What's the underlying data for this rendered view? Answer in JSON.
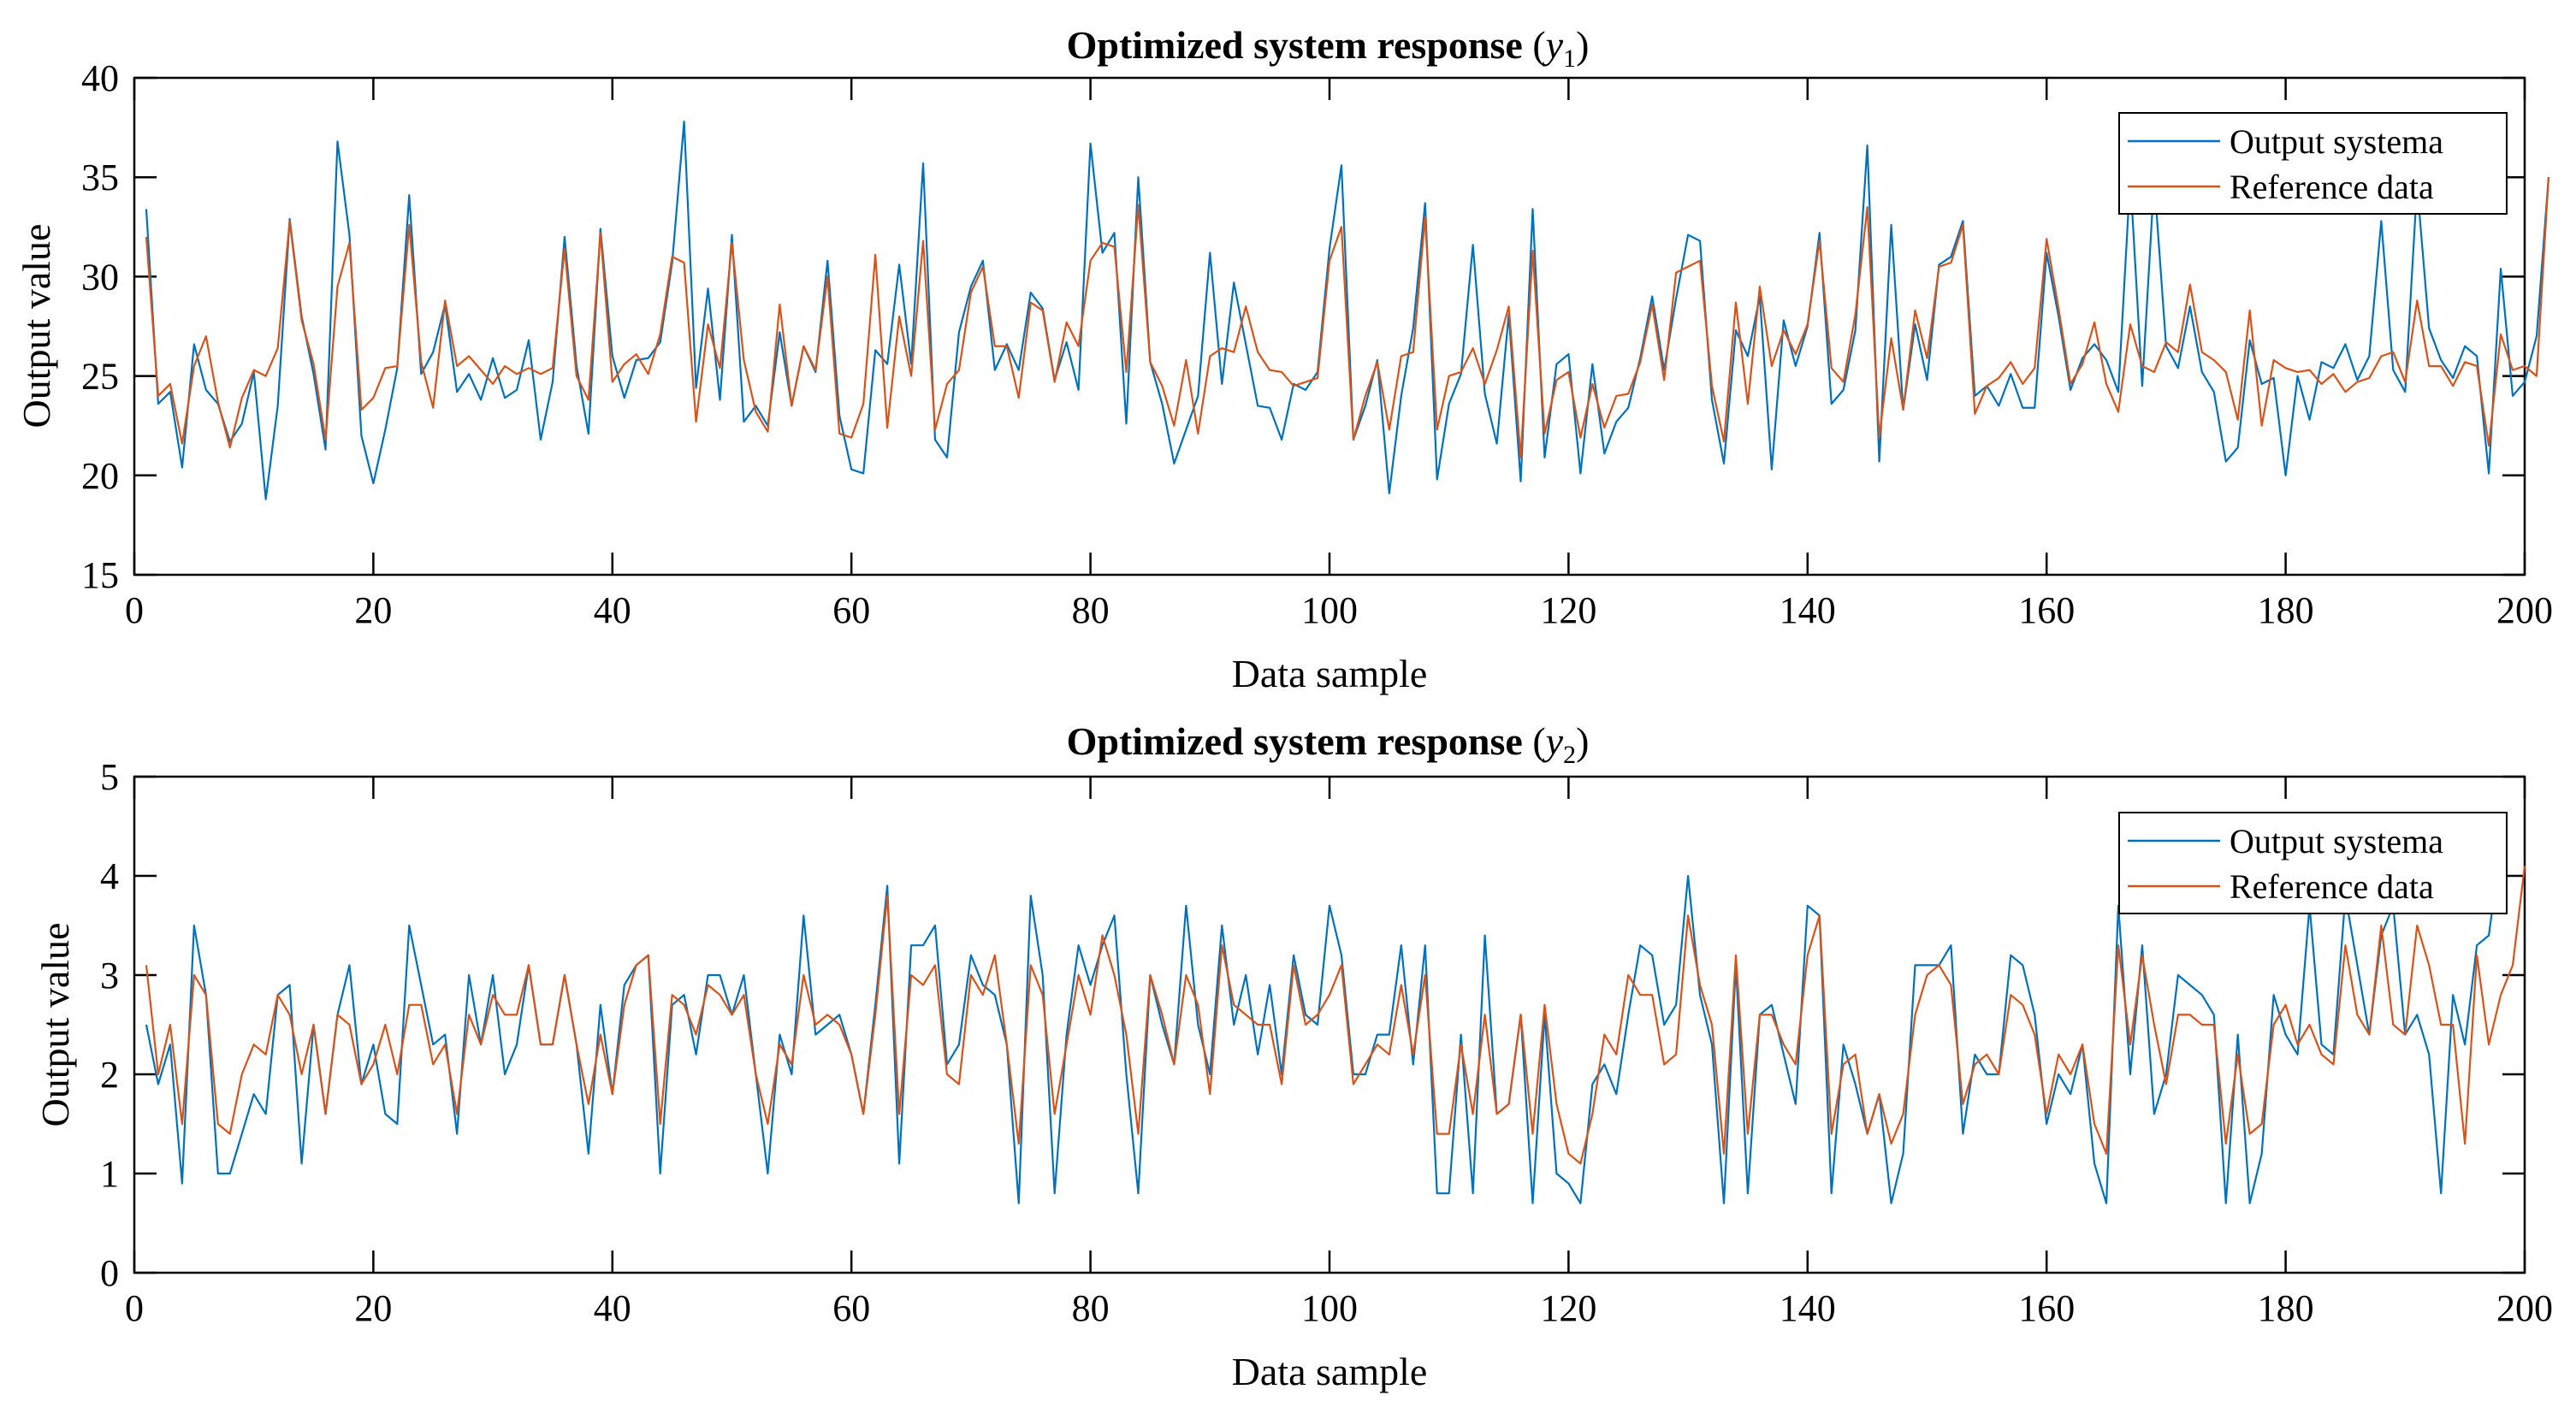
{
  "colors": {
    "output": "#0072BD",
    "reference": "#D95319",
    "axis": "#000000",
    "background": "#ffffff"
  },
  "chart_data": [
    {
      "type": "line",
      "title": "Optimized system response",
      "title_symbol": "y",
      "title_subscript": "1",
      "xlabel": "Data sample",
      "ylabel": "Output value",
      "xlim": [
        0,
        200
      ],
      "ylim": [
        15,
        40
      ],
      "xticks": [
        0,
        20,
        40,
        60,
        80,
        100,
        120,
        140,
        160,
        180,
        200
      ],
      "yticks": [
        15,
        20,
        25,
        30,
        35,
        40
      ],
      "legend_position": "top-right",
      "series": [
        {
          "name": "Output systema",
          "color": "#0072BD",
          "values": [
            33.4,
            23.6,
            24.2,
            20.4,
            26.6,
            24.3,
            23.6,
            21.7,
            22.6,
            25.2,
            18.8,
            23.5,
            32.9,
            28.0,
            25.1,
            21.3,
            36.8,
            32.1,
            22.0,
            19.6,
            22.3,
            25.4,
            34.1,
            25.1,
            26.2,
            28.6,
            24.2,
            25.1,
            23.8,
            25.9,
            23.9,
            24.3,
            26.8,
            21.8,
            24.7,
            32.0,
            25.5,
            22.1,
            32.4,
            26.0,
            23.9,
            25.8,
            25.9,
            26.7,
            30.7,
            37.8,
            24.4,
            29.4,
            23.8,
            32.1,
            22.7,
            23.5,
            22.5,
            27.2,
            23.5,
            26.5,
            25.2,
            30.8,
            23.0,
            20.3,
            20.1,
            26.3,
            25.6,
            30.6,
            25.6,
            35.7,
            21.8,
            20.9,
            27.2,
            29.5,
            30.8,
            25.3,
            26.6,
            25.3,
            29.2,
            28.4,
            24.8,
            26.7,
            24.3,
            36.7,
            31.2,
            32.2,
            22.6,
            35.0,
            25.7,
            23.6,
            20.6,
            22.3,
            24.0,
            31.2,
            24.6,
            29.7,
            26.6,
            23.5,
            23.4,
            21.8,
            24.6,
            24.3,
            25.2,
            31.4,
            35.6,
            21.8,
            23.5,
            25.8,
            19.1,
            24.0,
            27.4,
            33.7,
            19.8,
            23.6,
            25.1,
            31.6,
            24.1,
            21.6,
            28.1,
            19.7,
            33.4,
            20.9,
            25.6,
            26.1,
            20.1,
            25.6,
            21.1,
            22.7,
            23.4,
            25.9,
            29.0,
            25.3,
            28.9,
            32.1,
            31.8,
            23.8,
            20.6,
            27.3,
            26.0,
            29.0,
            20.3,
            27.8,
            25.5,
            27.5,
            32.2,
            23.6,
            24.3,
            27.3,
            36.6,
            20.7,
            32.6,
            23.3,
            27.6,
            24.8,
            30.6,
            31.0,
            32.8,
            24.0,
            24.5,
            23.5,
            25.1,
            23.4,
            23.4,
            31.2,
            28.0,
            24.3,
            25.9,
            26.6,
            25.8,
            24.2,
            35.0,
            24.5,
            34.9,
            26.5,
            25.4,
            28.5,
            25.2,
            24.2,
            20.7,
            21.4,
            26.8,
            24.6,
            24.9,
            20.0,
            25.0,
            22.8,
            25.7,
            25.4,
            26.6,
            24.8,
            26.0,
            32.8,
            25.3,
            24.2,
            34.6,
            27.4,
            25.8,
            24.9,
            26.5,
            26.0,
            20.1,
            30.4,
            24.0,
            24.7,
            27.0,
            35.0
          ]
        },
        {
          "name": "Reference data",
          "color": "#D95319",
          "values": [
            32.0,
            24.0,
            24.6,
            21.6,
            25.5,
            27.0,
            23.7,
            21.4,
            23.9,
            25.3,
            25.0,
            26.4,
            32.8,
            27.8,
            25.6,
            21.8,
            29.5,
            31.7,
            23.3,
            23.9,
            25.4,
            25.5,
            32.6,
            25.7,
            23.4,
            28.8,
            25.5,
            26.0,
            25.3,
            24.6,
            25.5,
            25.1,
            25.4,
            25.1,
            25.4,
            31.4,
            25.0,
            23.8,
            32.2,
            24.7,
            25.6,
            26.1,
            25.1,
            27.1,
            31.0,
            30.7,
            22.7,
            27.6,
            25.4,
            31.7,
            25.8,
            23.2,
            22.2,
            28.6,
            23.5,
            26.5,
            25.3,
            30.0,
            22.1,
            21.9,
            23.6,
            31.1,
            22.4,
            28.0,
            25.0,
            31.8,
            22.3,
            24.6,
            25.3,
            29.2,
            30.5,
            26.5,
            26.5,
            23.9,
            28.7,
            28.3,
            24.7,
            27.7,
            26.5,
            30.8,
            31.7,
            31.5,
            25.2,
            33.6,
            25.7,
            24.5,
            22.5,
            25.8,
            22.1,
            26.0,
            26.4,
            26.2,
            28.5,
            26.2,
            25.3,
            25.2,
            24.5,
            24.7,
            24.9,
            30.8,
            32.5,
            21.8,
            24.0,
            25.7,
            22.3,
            26.0,
            26.2,
            33.0,
            22.3,
            25.0,
            25.2,
            26.4,
            24.6,
            26.3,
            28.5,
            20.9,
            31.3,
            22.1,
            24.8,
            25.2,
            21.9,
            24.6,
            22.4,
            24.0,
            24.1,
            25.7,
            28.6,
            24.8,
            30.2,
            30.5,
            30.8,
            24.5,
            21.7,
            28.7,
            23.6,
            29.5,
            25.5,
            27.3,
            26.1,
            27.6,
            31.8,
            25.4,
            24.7,
            28.1,
            33.5,
            21.9,
            26.9,
            23.3,
            28.3,
            25.9,
            30.5,
            30.7,
            32.6,
            23.1,
            24.5,
            24.9,
            25.7,
            24.6,
            25.4,
            31.9,
            28.4,
            24.6,
            25.6,
            27.7,
            24.6,
            23.2,
            27.6,
            25.5,
            25.2,
            26.7,
            26.2,
            29.6,
            26.2,
            25.8,
            25.2,
            22.8,
            28.3,
            22.5,
            25.8,
            25.4,
            25.2,
            25.3,
            24.6,
            25.1,
            24.2,
            24.7,
            24.9,
            26.0,
            26.2,
            24.7,
            28.8,
            25.5,
            25.5,
            24.5,
            25.7,
            25.5,
            21.5,
            27.1,
            25.3,
            25.5,
            25.0,
            35.0
          ]
        }
      ]
    },
    {
      "type": "line",
      "title": "Optimized system response",
      "title_symbol": "y",
      "title_subscript": "2",
      "xlabel": "Data sample",
      "ylabel": "Output value",
      "xlim": [
        0,
        200
      ],
      "ylim": [
        0,
        5
      ],
      "xticks": [
        0,
        20,
        40,
        60,
        80,
        100,
        120,
        140,
        160,
        180,
        200
      ],
      "yticks": [
        0,
        1,
        2,
        3,
        4,
        5
      ],
      "legend_position": "top-right",
      "series": [
        {
          "name": "Output systema",
          "color": "#0072BD",
          "values": [
            2.5,
            1.9,
            2.3,
            0.9,
            3.5,
            2.8,
            1.0,
            1.0,
            1.4,
            1.8,
            1.6,
            2.8,
            2.9,
            1.1,
            2.5,
            1.6,
            2.6,
            3.1,
            1.9,
            2.3,
            1.6,
            1.5,
            3.5,
            2.9,
            2.3,
            2.4,
            1.4,
            3.0,
            2.3,
            3.0,
            2.0,
            2.3,
            3.1,
            2.3,
            2.3,
            3.0,
            2.3,
            1.2,
            2.7,
            1.8,
            2.9,
            3.1,
            3.2,
            1.0,
            2.7,
            2.8,
            2.2,
            3.0,
            3.0,
            2.6,
            3.0,
            2.0,
            1.0,
            2.4,
            2.0,
            3.6,
            2.4,
            2.5,
            2.6,
            2.2,
            1.6,
            2.7,
            3.9,
            1.1,
            3.3,
            3.3,
            3.5,
            2.1,
            2.3,
            3.2,
            2.9,
            2.8,
            2.3,
            0.7,
            3.8,
            3.0,
            0.8,
            2.4,
            3.3,
            2.9,
            3.3,
            3.6,
            2.0,
            0.8,
            3.0,
            2.5,
            2.1,
            3.7,
            2.5,
            2.0,
            3.5,
            2.5,
            3.0,
            2.2,
            2.9,
            2.0,
            3.2,
            2.6,
            2.5,
            3.7,
            3.2,
            2.0,
            2.0,
            2.4,
            2.4,
            3.3,
            2.1,
            3.3,
            0.8,
            0.8,
            2.4,
            0.8,
            3.4,
            1.6,
            1.7,
            2.6,
            0.7,
            2.6,
            1.0,
            0.9,
            0.7,
            1.9,
            2.1,
            1.8,
            2.6,
            3.3,
            3.2,
            2.5,
            2.7,
            4.0,
            2.8,
            2.3,
            0.7,
            3.1,
            0.8,
            2.6,
            2.7,
            2.2,
            1.7,
            3.7,
            3.6,
            0.8,
            2.3,
            1.9,
            1.4,
            1.8,
            0.7,
            1.2,
            3.1,
            3.1,
            3.1,
            3.3,
            1.4,
            2.2,
            2.0,
            2.0,
            3.2,
            3.1,
            2.6,
            1.5,
            2.0,
            1.8,
            2.3,
            1.1,
            0.7,
            3.7,
            2.0,
            3.3,
            1.6,
            2.0,
            3.0,
            2.9,
            2.8,
            2.6,
            0.7,
            2.4,
            0.7,
            1.2,
            2.8,
            2.4,
            2.2,
            3.7,
            2.3,
            2.2,
            3.8,
            3.1,
            2.4,
            3.4,
            3.7,
            2.4,
            2.6,
            2.2,
            0.8,
            2.8,
            2.3,
            3.3,
            3.4,
            4.3
          ]
        },
        {
          "name": "Reference data",
          "color": "#D95319",
          "values": [
            3.1,
            2.0,
            2.5,
            1.5,
            3.0,
            2.8,
            1.5,
            1.4,
            2.0,
            2.3,
            2.2,
            2.8,
            2.6,
            2.0,
            2.5,
            1.6,
            2.6,
            2.5,
            1.9,
            2.1,
            2.5,
            2.0,
            2.7,
            2.7,
            2.1,
            2.3,
            1.6,
            2.6,
            2.3,
            2.8,
            2.6,
            2.6,
            3.1,
            2.3,
            2.3,
            3.0,
            2.3,
            1.7,
            2.4,
            1.8,
            2.7,
            3.1,
            3.2,
            1.5,
            2.8,
            2.7,
            2.4,
            2.9,
            2.8,
            2.6,
            2.8,
            2.0,
            1.5,
            2.3,
            2.1,
            3.0,
            2.5,
            2.6,
            2.5,
            2.2,
            1.6,
            2.6,
            3.8,
            1.6,
            3.0,
            2.9,
            3.1,
            2.0,
            1.9,
            3.0,
            2.8,
            3.2,
            2.3,
            1.3,
            3.1,
            2.8,
            1.6,
            2.3,
            3.0,
            2.6,
            3.4,
            3.0,
            2.4,
            1.4,
            3.0,
            2.6,
            2.1,
            3.0,
            2.7,
            1.8,
            3.3,
            2.7,
            2.6,
            2.5,
            2.5,
            1.9,
            3.1,
            2.5,
            2.6,
            2.8,
            3.1,
            1.9,
            2.1,
            2.3,
            2.2,
            2.9,
            2.2,
            3.0,
            1.4,
            1.4,
            2.3,
            1.6,
            2.6,
            1.6,
            1.7,
            2.6,
            1.4,
            2.7,
            1.7,
            1.2,
            1.1,
            1.6,
            2.4,
            2.2,
            3.0,
            2.8,
            2.8,
            2.1,
            2.2,
            3.6,
            2.9,
            2.5,
            1.2,
            3.2,
            1.4,
            2.6,
            2.6,
            2.3,
            2.1,
            3.2,
            3.6,
            1.4,
            2.1,
            2.2,
            1.4,
            1.8,
            1.3,
            1.6,
            2.6,
            3.0,
            3.1,
            2.9,
            1.7,
            2.1,
            2.2,
            2.0,
            2.8,
            2.7,
            2.4,
            1.6,
            2.2,
            2.0,
            2.3,
            1.5,
            1.2,
            3.3,
            2.3,
            3.2,
            2.5,
            1.9,
            2.6,
            2.6,
            2.5,
            2.5,
            1.3,
            2.2,
            1.4,
            1.5,
            2.5,
            2.7,
            2.3,
            2.5,
            2.2,
            2.1,
            3.3,
            2.6,
            2.4,
            3.5,
            2.5,
            2.4,
            3.5,
            3.1,
            2.5,
            2.5,
            1.3,
            3.2,
            2.3,
            2.8,
            3.1,
            4.1
          ]
        }
      ]
    }
  ]
}
